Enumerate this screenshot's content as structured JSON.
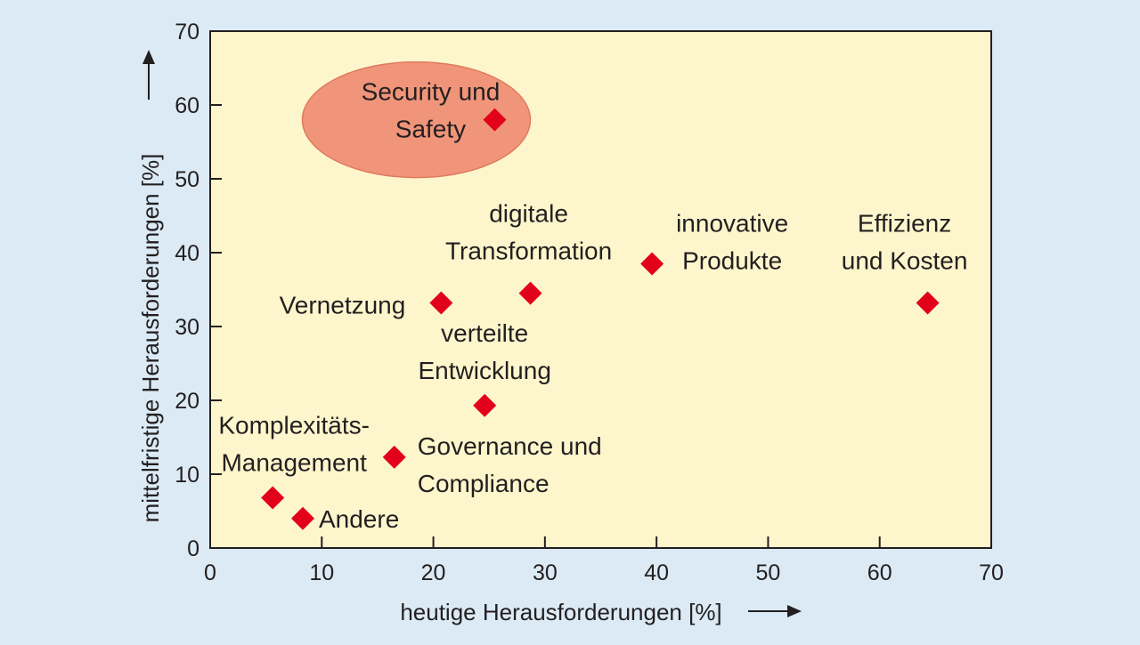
{
  "colors": {
    "page_background": "#dbeaf4",
    "plot_background": "#fdf6cc",
    "marker": "#e3001b",
    "highlight": "#f0957a",
    "highlight_stroke": "#e07a5f",
    "axis": "#231f20"
  },
  "chart_data": {
    "type": "scatter",
    "title": "",
    "xlabel": "heutige Herausforderungen [%]",
    "ylabel": "mittelfristige Herausforderungen [%]",
    "xlim": [
      0,
      70
    ],
    "ylim": [
      0,
      70
    ],
    "xticks": [
      0,
      10,
      20,
      30,
      40,
      50,
      60,
      70
    ],
    "yticks": [
      0,
      10,
      20,
      30,
      40,
      50,
      60,
      70
    ],
    "grid": false,
    "marker": "diamond",
    "points": [
      {
        "id": "security",
        "label": [
          "Security und",
          "Safety"
        ],
        "x": 25.5,
        "y": 58,
        "highlighted": true
      },
      {
        "id": "digital",
        "label": [
          "digitale",
          "Transformation"
        ],
        "x": 28.7,
        "y": 34.5
      },
      {
        "id": "innovative",
        "label": [
          "innovative",
          "Produkte"
        ],
        "x": 39.6,
        "y": 38.5
      },
      {
        "id": "effizienz",
        "label": [
          "Effizienz",
          "und Kosten"
        ],
        "x": 64.3,
        "y": 33.2
      },
      {
        "id": "vernetzung",
        "label": [
          "Vernetzung"
        ],
        "x": 20.7,
        "y": 33.2
      },
      {
        "id": "verteilte",
        "label": [
          "verteilte",
          "Entwicklung"
        ],
        "x": 24.6,
        "y": 19.3
      },
      {
        "id": "governance",
        "label": [
          "Governance und",
          "Compliance"
        ],
        "x": 16.5,
        "y": 12.3
      },
      {
        "id": "komplex",
        "label": [
          "Komplexitäts-",
          "Management"
        ],
        "x": 5.6,
        "y": 6.8
      },
      {
        "id": "andere",
        "label": [
          "Andere"
        ],
        "x": 8.3,
        "y": 4.0
      }
    ]
  }
}
